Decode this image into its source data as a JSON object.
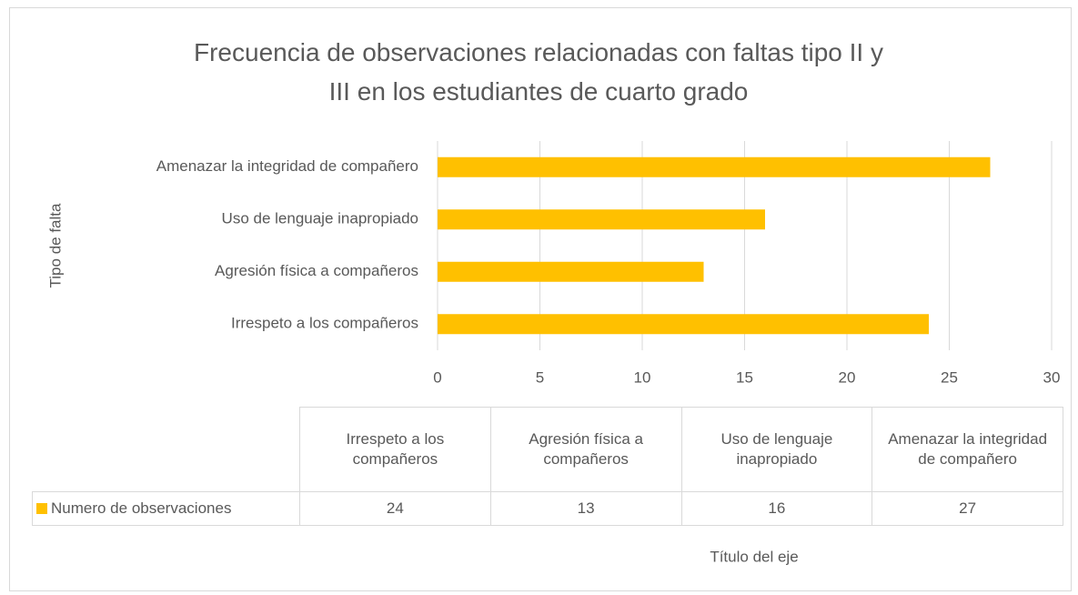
{
  "chart_data": {
    "type": "bar",
    "orientation": "horizontal",
    "title": "Frecuencia de observaciones relacionadas con faltas tipo II y III en los estudiantes de cuarto grado",
    "categories": [
      "Irrespeto a los compañeros",
      "Agresión física a compañeros",
      "Uso de lenguaje inapropiado",
      "Amenazar la integridad de compañero"
    ],
    "series": [
      {
        "name": "Numero de observaciones",
        "color": "#ffc000",
        "values": [
          24,
          13,
          16,
          27
        ]
      }
    ],
    "xlim": [
      0,
      30
    ],
    "xticks": [
      0,
      5,
      10,
      15,
      20,
      25,
      30
    ],
    "grid": true,
    "x_label": "Título del eje",
    "y_label": "Tipo de falta",
    "data_table": true
  }
}
